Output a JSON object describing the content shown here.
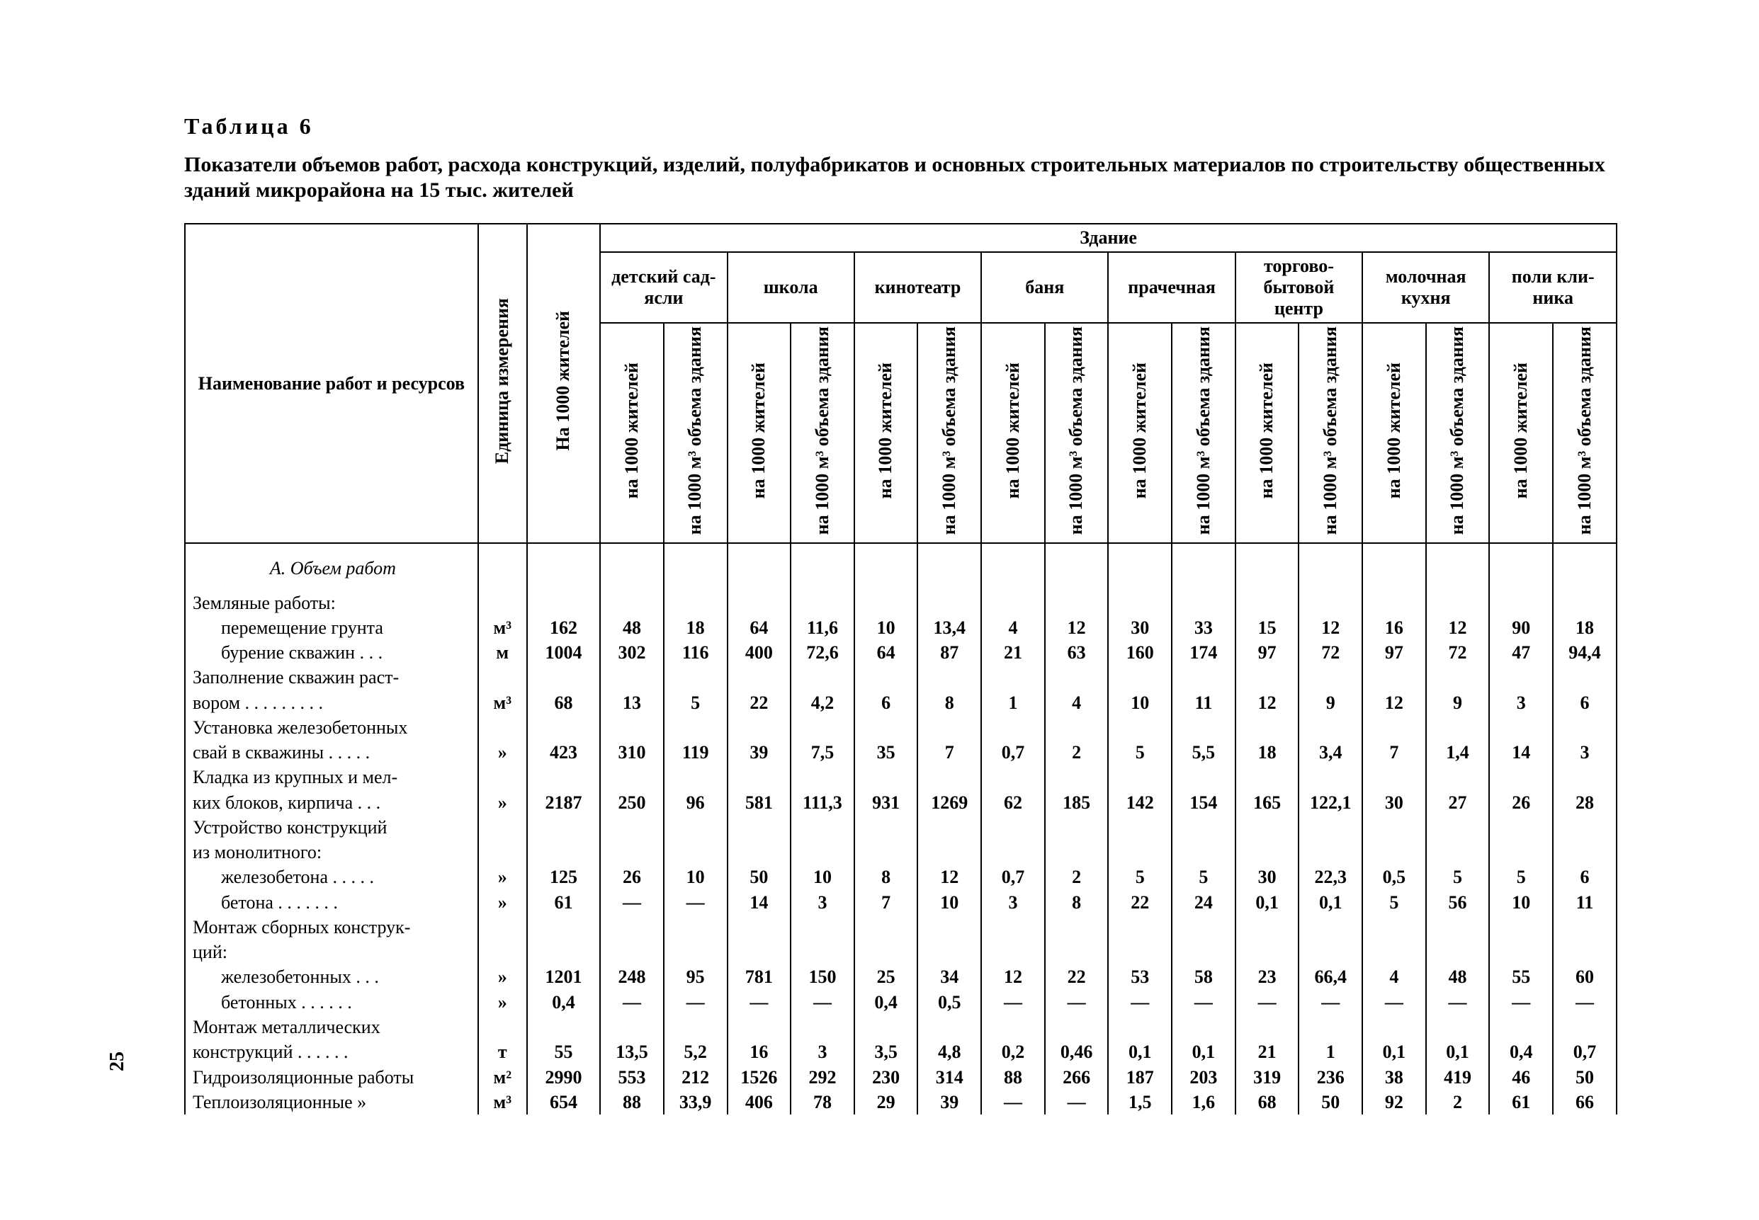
{
  "page_number": "25",
  "table_number": "Таблица  6",
  "title": "Показатели объемов работ, расхода конструкций, изделий, полуфабрикатов и основных строительных материалов по строительству общественных зданий микрорайона на 15 тыс. жителей",
  "head": {
    "name": "Наименование работ и ресурсов",
    "unit": "Единица измерения",
    "per1000": "На 1000 жителей",
    "zdanie": "Здание",
    "buildings": [
      "детский сад-ясли",
      "школа",
      "кинотеатр",
      "баня",
      "прачечная",
      "торгово-бытовой центр",
      "молочная кухня",
      "поли кли-ника"
    ],
    "sub_a": "на 1000 жителей",
    "sub_b": "на 1000 м³ объема здания"
  },
  "section_a": "А. Объем работ",
  "rows": [
    {
      "name": "Земляные работы:",
      "u": "",
      "t": "",
      "v": [
        "",
        "",
        "",
        "",
        "",
        "",
        "",
        "",
        "",
        "",
        "",
        "",
        "",
        "",
        "",
        ""
      ]
    },
    {
      "name": "перемещение грунта",
      "indent": 1,
      "u": "м³",
      "t": "162",
      "v": [
        "48",
        "18",
        "64",
        "11,6",
        "10",
        "13,4",
        "4",
        "12",
        "30",
        "33",
        "15",
        "12",
        "16",
        "12",
        "90",
        "18"
      ]
    },
    {
      "name": "бурение скважин . . .",
      "indent": 1,
      "u": "м",
      "t": "1004",
      "v": [
        "302",
        "116",
        "400",
        "72,6",
        "64",
        "87",
        "21",
        "63",
        "160",
        "174",
        "97",
        "72",
        "97",
        "72",
        "47",
        "94,4"
      ]
    },
    {
      "name": "Заполнение скважин раст-",
      "u": "",
      "t": "",
      "v": [
        "",
        "",
        "",
        "",
        "",
        "",
        "",
        "",
        "",
        "",
        "",
        "",
        "",
        "",
        "",
        ""
      ]
    },
    {
      "name": "вором . . . . . . . . .",
      "u": "м³",
      "t": "68",
      "v": [
        "13",
        "5",
        "22",
        "4,2",
        "6",
        "8",
        "1",
        "4",
        "10",
        "11",
        "12",
        "9",
        "12",
        "9",
        "3",
        "6"
      ]
    },
    {
      "name": "Установка железобетонных",
      "u": "",
      "t": "",
      "v": [
        "",
        "",
        "",
        "",
        "",
        "",
        "",
        "",
        "",
        "",
        "",
        "",
        "",
        "",
        "",
        ""
      ]
    },
    {
      "name": "свай в скважины . . . . .",
      "u": "»",
      "t": "423",
      "v": [
        "310",
        "119",
        "39",
        "7,5",
        "35",
        "7",
        "0,7",
        "2",
        "5",
        "5,5",
        "18",
        "3,4",
        "7",
        "1,4",
        "14",
        "3"
      ]
    },
    {
      "name": "Кладка из крупных и мел-",
      "u": "",
      "t": "",
      "v": [
        "",
        "",
        "",
        "",
        "",
        "",
        "",
        "",
        "",
        "",
        "",
        "",
        "",
        "",
        "",
        ""
      ]
    },
    {
      "name": "ких блоков, кирпича . . .",
      "u": "»",
      "t": "2187",
      "v": [
        "250",
        "96",
        "581",
        "111,3",
        "931",
        "1269",
        "62",
        "185",
        "142",
        "154",
        "165",
        "122,1",
        "30",
        "27",
        "26",
        "28"
      ]
    },
    {
      "name": "Устройство конструкций",
      "u": "",
      "t": "",
      "v": [
        "",
        "",
        "",
        "",
        "",
        "",
        "",
        "",
        "",
        "",
        "",
        "",
        "",
        "",
        "",
        ""
      ]
    },
    {
      "name": "из монолитного:",
      "u": "",
      "t": "",
      "v": [
        "",
        "",
        "",
        "",
        "",
        "",
        "",
        "",
        "",
        "",
        "",
        "",
        "",
        "",
        "",
        ""
      ]
    },
    {
      "name": "железобетона . . . . .",
      "indent": 1,
      "u": "»",
      "t": "125",
      "v": [
        "26",
        "10",
        "50",
        "10",
        "8",
        "12",
        "0,7",
        "2",
        "5",
        "5",
        "30",
        "22,3",
        "0,5",
        "5",
        "5",
        "6"
      ]
    },
    {
      "name": "бетона  . . . . . . .",
      "indent": 1,
      "u": "»",
      "t": "61",
      "v": [
        "—",
        "—",
        "14",
        "3",
        "7",
        "10",
        "3",
        "8",
        "22",
        "24",
        "0,1",
        "0,1",
        "5",
        "56",
        "10",
        "11"
      ]
    },
    {
      "name": "Монтаж сборных конструк-",
      "u": "",
      "t": "",
      "v": [
        "",
        "",
        "",
        "",
        "",
        "",
        "",
        "",
        "",
        "",
        "",
        "",
        "",
        "",
        "",
        ""
      ]
    },
    {
      "name": "ций:",
      "u": "",
      "t": "",
      "v": [
        "",
        "",
        "",
        "",
        "",
        "",
        "",
        "",
        "",
        "",
        "",
        "",
        "",
        "",
        "",
        ""
      ]
    },
    {
      "name": "железобетонных  . . .",
      "indent": 1,
      "u": "»",
      "t": "1201",
      "v": [
        "248",
        "95",
        "781",
        "150",
        "25",
        "34",
        "12",
        "22",
        "53",
        "58",
        "23",
        "66,4",
        "4",
        "48",
        "55",
        "60"
      ]
    },
    {
      "name": "бетонных . . . . . .",
      "indent": 1,
      "u": "»",
      "t": "0,4",
      "v": [
        "—",
        "—",
        "—",
        "—",
        "0,4",
        "0,5",
        "—",
        "—",
        "—",
        "—",
        "—",
        "—",
        "—",
        "—",
        "—",
        "—"
      ]
    },
    {
      "name": "Монтаж    металлических",
      "u": "",
      "t": "",
      "v": [
        "",
        "",
        "",
        "",
        "",
        "",
        "",
        "",
        "",
        "",
        "",
        "",
        "",
        "",
        "",
        ""
      ]
    },
    {
      "name": "конструкций  . . . . . .",
      "u": "т",
      "t": "55",
      "v": [
        "13,5",
        "5,2",
        "16",
        "3",
        "3,5",
        "4,8",
        "0,2",
        "0,46",
        "0,1",
        "0,1",
        "21",
        "1",
        "0,1",
        "0,1",
        "0,4",
        "0,7"
      ]
    },
    {
      "name": "Гидроизоляционные работы",
      "u": "м²",
      "t": "2990",
      "v": [
        "553",
        "212",
        "1526",
        "292",
        "230",
        "314",
        "88",
        "266",
        "187",
        "203",
        "319",
        "236",
        "38",
        "419",
        "46",
        "50"
      ]
    },
    {
      "name": "Теплоизоляционные     »",
      "u": "м³",
      "t": "654",
      "v": [
        "88",
        "33,9",
        "406",
        "78",
        "29",
        "39",
        "—",
        "—",
        "1,5",
        "1,6",
        "68",
        "50",
        "92",
        "2",
        "61",
        "66"
      ]
    }
  ]
}
